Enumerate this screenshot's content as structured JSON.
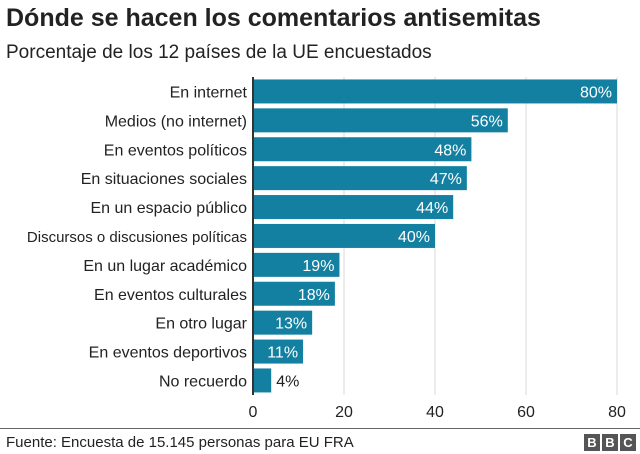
{
  "chart_data": {
    "type": "bar",
    "orientation": "horizontal",
    "title": "Dónde se hacen los comentarios antisemitas",
    "subtitle": "Porcentaje de los 12 países de la UE encuestados",
    "categories": [
      "En internet",
      "Medios (no internet)",
      "En eventos políticos",
      "En situaciones sociales",
      "En un espacio público",
      "Discursos o discusiones políticas",
      "En un lugar académico",
      "En eventos culturales",
      "En otro lugar",
      "En eventos deportivos",
      "No recuerdo"
    ],
    "values": [
      80,
      56,
      48,
      47,
      44,
      40,
      19,
      18,
      13,
      11,
      4
    ],
    "data_labels": [
      "80%",
      "56%",
      "48%",
      "47%",
      "44%",
      "40%",
      "19%",
      "18%",
      "13%",
      "11%",
      "4%"
    ],
    "xlim": [
      0,
      80
    ],
    "xticks": [
      "0",
      "20",
      "40",
      "60",
      "80"
    ],
    "grid": true,
    "bar_color": "#1380a1"
  },
  "footer": {
    "source": "Fuente: Encuesta de 15.145 personas para EU FRA",
    "logo": [
      "B",
      "B",
      "C"
    ]
  }
}
